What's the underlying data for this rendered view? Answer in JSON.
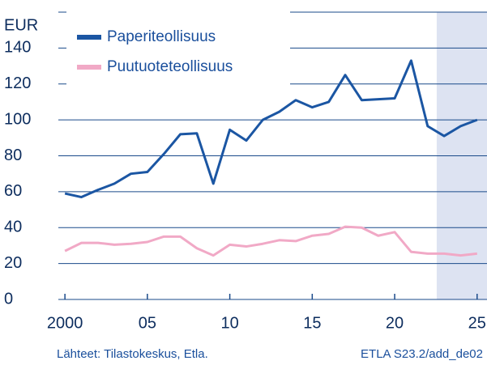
{
  "chart_data": {
    "type": "line",
    "y_label": "EUR",
    "x": [
      2000,
      2001,
      2002,
      2003,
      2004,
      2005,
      2006,
      2007,
      2008,
      2009,
      2010,
      2011,
      2012,
      2013,
      2014,
      2015,
      2016,
      2017,
      2018,
      2019,
      2020,
      2021,
      2022,
      2023,
      2024,
      2025
    ],
    "series": [
      {
        "name": "Paperiteollisuus",
        "color": "#1b56a3",
        "values": [
          59,
          57,
          61,
          64.5,
          70,
          71,
          81,
          92,
          92.5,
          64.5,
          94.5,
          88.5,
          100,
          104.5,
          111,
          107,
          110,
          125,
          111,
          111.5,
          112,
          133,
          96.5,
          91,
          96.5,
          100
        ]
      },
      {
        "name": "Puutuoteteollisuus",
        "color": "#f1a9c6",
        "values": [
          27,
          31.5,
          31.5,
          30.5,
          31,
          32,
          35,
          35,
          28.5,
          24.5,
          30.5,
          29.5,
          31,
          33,
          32.5,
          35.5,
          36.5,
          40.5,
          40,
          35.5,
          37.5,
          26.5,
          25.5,
          25.5,
          24.5,
          25.5
        ]
      }
    ],
    "xlim": [
      1999.6,
      2025.6
    ],
    "xticks": [
      2000,
      {
        "value": 2005,
        "label": "05"
      },
      {
        "value": 2010,
        "label": "10"
      },
      {
        "value": 2015,
        "label": "15"
      },
      {
        "value": 2020,
        "label": "20"
      },
      {
        "value": 2025,
        "label": "25"
      }
    ],
    "ylim": [
      0,
      160
    ],
    "yticks": [
      0,
      20,
      40,
      60,
      80,
      100,
      120,
      140,
      160
    ],
    "grid": true,
    "shade_xlim": [
      2022.55,
      2025.6
    ],
    "shade_color": "#dde3f2",
    "legend": "upper left",
    "source": "Lähteet:  Tilastokeskus, Etla.",
    "code": "ETLA S23.2/add_de02"
  }
}
